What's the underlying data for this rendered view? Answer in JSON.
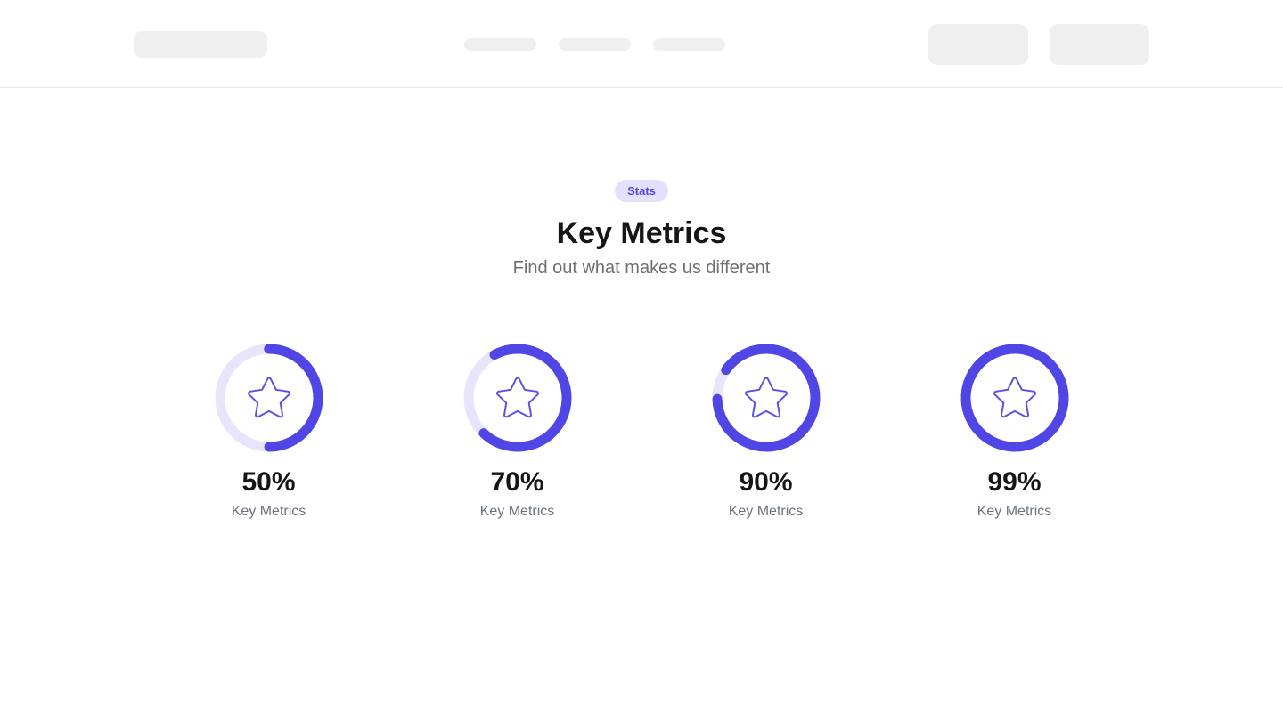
{
  "header": {
    "skeleton_nav_items": 3,
    "skeleton_action_buttons": 2
  },
  "section": {
    "badge_label": "Stats",
    "title": "Key Metrics",
    "subtitle": "Find out what makes us different"
  },
  "metrics": [
    {
      "value": "50%",
      "label": "Key Metrics",
      "percent": 50,
      "ring_rotation": 0
    },
    {
      "value": "70%",
      "label": "Key Metrics",
      "percent": 70,
      "ring_rotation": -28
    },
    {
      "value": "90%",
      "label": "Key Metrics",
      "percent": 90,
      "ring_rotation": -55
    },
    {
      "value": "99%",
      "label": "Key Metrics",
      "percent": 99,
      "ring_rotation": -88
    }
  ],
  "chart_data": {
    "type": "pie",
    "subtype": "progress-rings",
    "categories": [
      "Key Metrics",
      "Key Metrics",
      "Key Metrics",
      "Key Metrics"
    ],
    "values": [
      50,
      70,
      90,
      99
    ],
    "unit": "%",
    "title": "Key Metrics"
  },
  "colors": {
    "accent": "#4f46e5",
    "ring_track": "#e7e4fb",
    "badge_bg": "#e3e0fb",
    "skeleton": "#efefef",
    "star": "#5a50e8"
  }
}
